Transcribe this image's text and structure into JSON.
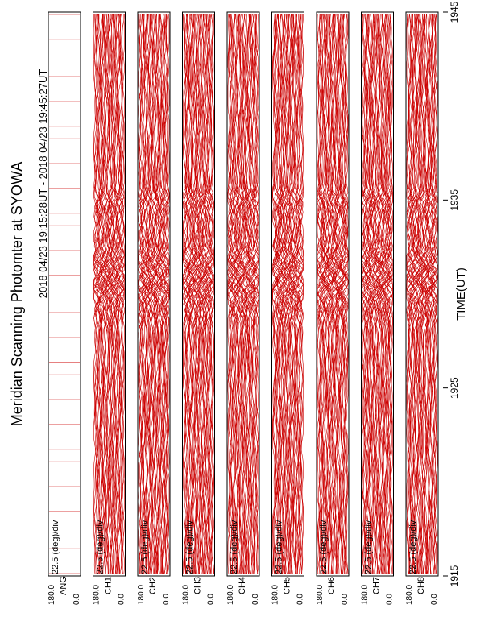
{
  "title": "Meridian Scanning Photomter at SYOWA",
  "subtitle": "2018 04/23 19:15:28UT - 2018 04/23 19:45:27UT",
  "colors": {
    "trace": "#cc0000",
    "ink": "#000000",
    "background": "#ffffff"
  },
  "chart_data": {
    "type": "line",
    "orientation": "rotated-90-ccw",
    "xlabel": "TIME(UT)",
    "x_ticks": [
      "1915",
      "1925",
      "1935",
      "1945"
    ],
    "x_range": [
      "1915",
      "1945"
    ],
    "scale_label": "22.5 (deg)/div",
    "y_tick_top": "180.0",
    "y_tick_bottom": "0.0",
    "panels": [
      {
        "name": "ANG"
      },
      {
        "name": "CH1"
      },
      {
        "name": "CH2"
      },
      {
        "name": "CH3"
      },
      {
        "name": "CH4"
      },
      {
        "name": "CH5"
      },
      {
        "name": "CH6"
      },
      {
        "name": "CH7"
      },
      {
        "name": "CH8"
      }
    ]
  }
}
